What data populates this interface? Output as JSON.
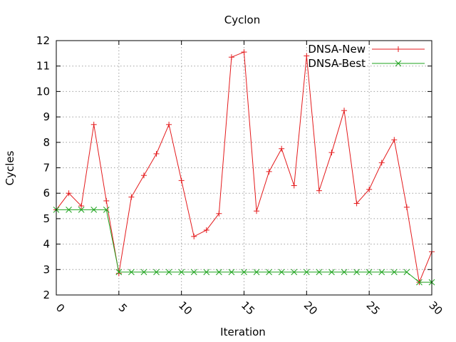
{
  "chart_data": {
    "type": "line",
    "title": "Cyclon",
    "xlabel": "Iteration",
    "ylabel": "Cycles",
    "xlim": [
      0,
      30
    ],
    "ylim": [
      2,
      12
    ],
    "xticks": [
      "0",
      "5",
      "10",
      "15",
      "20",
      "25",
      "30"
    ],
    "yticks": [
      "2",
      "3",
      "4",
      "5",
      "6",
      "7",
      "8",
      "9",
      "10",
      "11",
      "12"
    ],
    "grid": true,
    "legend_position": "top-right",
    "x": [
      0,
      1,
      2,
      3,
      4,
      5,
      6,
      7,
      8,
      9,
      10,
      11,
      12,
      13,
      14,
      15,
      16,
      17,
      18,
      19,
      20,
      21,
      22,
      23,
      24,
      25,
      26,
      27,
      28,
      29,
      30
    ],
    "series": [
      {
        "name": "DNSA-New",
        "color": "#e41a1c",
        "marker": "plus",
        "values": [
          5.35,
          6.0,
          5.5,
          8.7,
          5.7,
          2.85,
          5.85,
          6.7,
          7.55,
          8.7,
          6.5,
          4.3,
          4.55,
          5.2,
          11.35,
          11.55,
          5.3,
          6.85,
          7.75,
          6.3,
          11.4,
          6.1,
          7.6,
          9.25,
          5.6,
          6.15,
          7.2,
          8.1,
          5.45,
          2.5,
          3.7
        ]
      },
      {
        "name": "DNSA-Best",
        "color": "#1ea31e",
        "marker": "cross",
        "values": [
          5.35,
          5.35,
          5.35,
          5.35,
          5.35,
          2.9,
          2.9,
          2.9,
          2.9,
          2.9,
          2.9,
          2.9,
          2.9,
          2.9,
          2.9,
          2.9,
          2.9,
          2.9,
          2.9,
          2.9,
          2.9,
          2.9,
          2.9,
          2.9,
          2.9,
          2.9,
          2.9,
          2.9,
          2.9,
          2.5,
          2.5
        ]
      }
    ]
  }
}
